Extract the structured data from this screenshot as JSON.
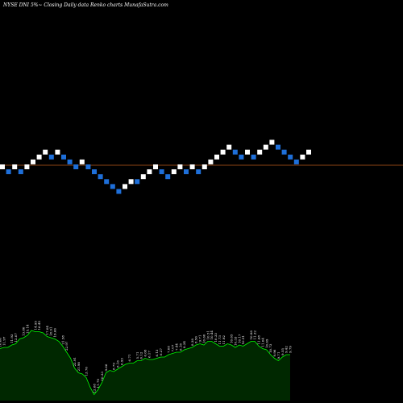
{
  "chart_data": {
    "type": "renko",
    "title": "NYSE DNI 5%~  Closing Daily data Renko  charts MunafaSutra.com",
    "up_color": "#ffffff",
    "down_color": "#1e6fd9",
    "reference_line_color": "#8b4513",
    "background": "#000000",
    "volume_area_color": "#002800",
    "volume_line_color": "#00ff00",
    "bricks": [
      {
        "dir": "up",
        "level": 0
      },
      {
        "dir": "down",
        "level": -1
      },
      {
        "dir": "up",
        "level": 0
      },
      {
        "dir": "down",
        "level": -1
      },
      {
        "dir": "up",
        "level": 0
      },
      {
        "dir": "up",
        "level": 1
      },
      {
        "dir": "up",
        "level": 2
      },
      {
        "dir": "up",
        "level": 3
      },
      {
        "dir": "down",
        "level": 2
      },
      {
        "dir": "up",
        "level": 3
      },
      {
        "dir": "down",
        "level": 2
      },
      {
        "dir": "down",
        "level": 1
      },
      {
        "dir": "down",
        "level": 0
      },
      {
        "dir": "up",
        "level": 1
      },
      {
        "dir": "down",
        "level": 0
      },
      {
        "dir": "down",
        "level": -1
      },
      {
        "dir": "down",
        "level": -2
      },
      {
        "dir": "down",
        "level": -3
      },
      {
        "dir": "down",
        "level": -4
      },
      {
        "dir": "down",
        "level": -5
      },
      {
        "dir": "up",
        "level": -4
      },
      {
        "dir": "up",
        "level": -3
      },
      {
        "dir": "down",
        "level": -3
      },
      {
        "dir": "up",
        "level": -2
      },
      {
        "dir": "up",
        "level": -1
      },
      {
        "dir": "up",
        "level": 0
      },
      {
        "dir": "down",
        "level": -1
      },
      {
        "dir": "down",
        "level": -2
      },
      {
        "dir": "up",
        "level": -1
      },
      {
        "dir": "up",
        "level": 0
      },
      {
        "dir": "down",
        "level": -1
      },
      {
        "dir": "up",
        "level": 0
      },
      {
        "dir": "down",
        "level": -1
      },
      {
        "dir": "up",
        "level": 0
      },
      {
        "dir": "up",
        "level": 1
      },
      {
        "dir": "up",
        "level": 2
      },
      {
        "dir": "up",
        "level": 3
      },
      {
        "dir": "up",
        "level": 4
      },
      {
        "dir": "down",
        "level": 3
      },
      {
        "dir": "down",
        "level": 2
      },
      {
        "dir": "up",
        "level": 3
      },
      {
        "dir": "down",
        "level": 2
      },
      {
        "dir": "up",
        "level": 3
      },
      {
        "dir": "up",
        "level": 4
      },
      {
        "dir": "up",
        "level": 5
      },
      {
        "dir": "down",
        "level": 4
      },
      {
        "dir": "down",
        "level": 3
      },
      {
        "dir": "down",
        "level": 2
      },
      {
        "dir": "down",
        "level": 1
      },
      {
        "dir": "up",
        "level": 2
      },
      {
        "dir": "up",
        "level": 3
      }
    ],
    "volume_values": [
      43,
      44,
      44,
      46,
      47,
      51,
      52,
      54,
      58,
      57,
      57,
      56,
      53,
      52,
      51,
      49,
      45,
      40,
      35,
      27,
      23,
      22,
      19,
      11,
      5,
      9,
      15,
      23,
      25,
      24,
      26,
      28,
      30,
      31,
      31,
      33,
      33,
      35,
      34,
      34,
      35,
      36,
      36,
      38,
      39,
      40,
      40,
      42,
      43,
      44,
      46,
      47,
      46,
      49,
      49,
      47,
      45,
      45,
      47,
      46,
      44,
      46,
      45,
      47,
      49,
      49,
      45,
      43,
      42,
      38,
      35,
      33,
      36,
      38,
      38
    ],
    "volume_labels": [
      {
        "text": "10.66",
        "i": 0
      },
      {
        "text": "11.97",
        "i": 1
      },
      {
        "text": "11.93",
        "i": 3
      },
      {
        "text": "12.07",
        "i": 4
      },
      {
        "text": "13.80",
        "i": 6
      },
      {
        "text": "15.14",
        "i": 7
      },
      {
        "text": "14.95",
        "i": 9
      },
      {
        "text": "16.45",
        "i": 10
      },
      {
        "text": "17.04",
        "i": 12
      },
      {
        "text": "18.91",
        "i": 13
      },
      {
        "text": "19.66",
        "i": 14
      },
      {
        "text": "21.58",
        "i": 16
      },
      {
        "text": "22.97",
        "i": 17
      },
      {
        "text": "22.91",
        "i": 19
      },
      {
        "text": "21.98",
        "i": 20
      },
      {
        "text": "13.76",
        "i": 22
      },
      {
        "text": "12.68",
        "i": 24
      },
      {
        "text": "11.79",
        "i": 25
      },
      {
        "text": "10.33",
        "i": 26
      },
      {
        "text": "9.66",
        "i": 27
      },
      {
        "text": "8.79",
        "i": 29
      },
      {
        "text": "8.16",
        "i": 30
      },
      {
        "text": "6.93",
        "i": 31
      },
      {
        "text": "6.71",
        "i": 33
      },
      {
        "text": "5.71",
        "i": 35
      },
      {
        "text": "6.12",
        "i": 36
      },
      {
        "text": "6.08",
        "i": 37
      },
      {
        "text": "6.17",
        "i": 38
      },
      {
        "text": "6.13",
        "i": 40
      },
      {
        "text": "6.27",
        "i": 41
      },
      {
        "text": "7.08",
        "i": 43
      },
      {
        "text": "7.07",
        "i": 44
      },
      {
        "text": "7.44",
        "i": 45
      },
      {
        "text": "8.18",
        "i": 46
      },
      {
        "text": "8.34",
        "i": 47
      },
      {
        "text": "8.38",
        "i": 49
      },
      {
        "text": "8.56",
        "i": 50
      },
      {
        "text": "9.71",
        "i": 51
      },
      {
        "text": "10.60",
        "i": 52
      },
      {
        "text": "10.51",
        "i": 53
      },
      {
        "text": "10.44",
        "i": 54
      },
      {
        "text": "10.33",
        "i": 55
      },
      {
        "text": "11.73",
        "i": 56
      },
      {
        "text": "11.92",
        "i": 57
      },
      {
        "text": "10.65",
        "i": 59
      },
      {
        "text": "10.33",
        "i": 60
      },
      {
        "text": "10.17",
        "i": 61
      },
      {
        "text": "10.51",
        "i": 62
      },
      {
        "text": "10.88",
        "i": 64
      },
      {
        "text": "11.32",
        "i": 65
      },
      {
        "text": "11.68",
        "i": 66
      },
      {
        "text": "11.04",
        "i": 67
      },
      {
        "text": "10.69",
        "i": 68
      },
      {
        "text": "10.73",
        "i": 69
      },
      {
        "text": "9.96",
        "i": 70
      },
      {
        "text": "9.71",
        "i": 71
      },
      {
        "text": "9.55",
        "i": 72
      },
      {
        "text": "9.42",
        "i": 73
      },
      {
        "text": "9.79",
        "i": 74
      }
    ]
  }
}
